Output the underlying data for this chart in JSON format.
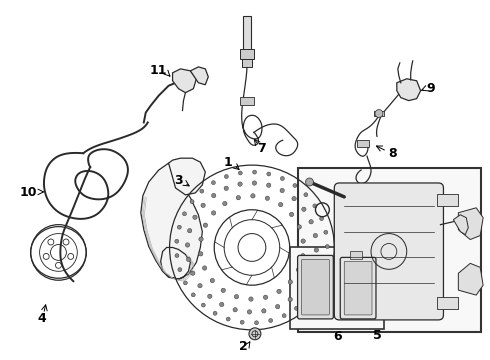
{
  "bg_color": "#ffffff",
  "line_color": "#2a2a2a",
  "label_color": "#000000",
  "figsize": [
    4.9,
    3.6
  ],
  "dpi": 100,
  "lw": 0.9,
  "lw_thick": 1.4
}
